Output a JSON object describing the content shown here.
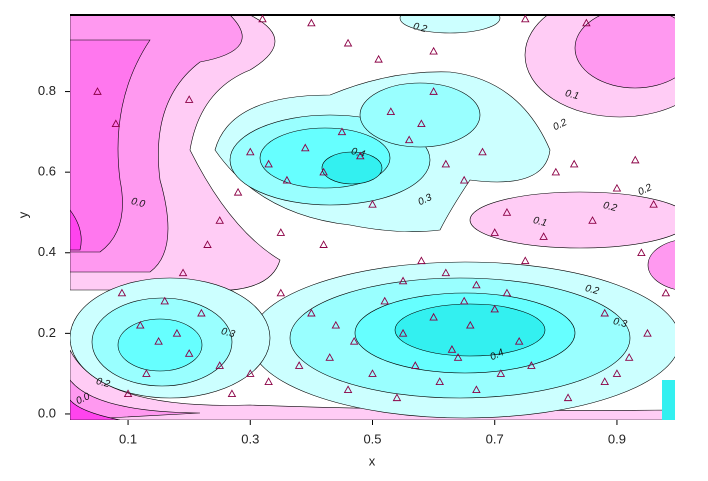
{
  "chart_data": {
    "type": "contour-scatter",
    "xlabel": "x",
    "ylabel": "y",
    "xlim": [
      0.005,
      0.995
    ],
    "ylim": [
      -0.015,
      0.99
    ],
    "xticks": [
      0.1,
      0.3,
      0.5,
      0.7,
      0.9
    ],
    "yticks": [
      {
        "value": 0,
        "label": "0.0"
      },
      0.2,
      0.4,
      0.6,
      0.8
    ],
    "marker_color": "#8b0045",
    "contour_labels": [
      "0.4",
      "0.3",
      "0.2",
      "0.3",
      "0.4",
      "0.3",
      "0.2",
      "0.0",
      "0.0",
      "0.1",
      "0.2",
      "0.2",
      "0.1",
      "0.2",
      "0.2"
    ],
    "points": {
      "x": [
        0.05,
        0.08,
        0.12,
        0.15,
        0.18,
        0.2,
        0.22,
        0.25,
        0.13,
        0.16,
        0.1,
        0.09,
        0.19,
        0.23,
        0.28,
        0.3,
        0.33,
        0.36,
        0.39,
        0.42,
        0.45,
        0.48,
        0.5,
        0.53,
        0.56,
        0.58,
        0.6,
        0.62,
        0.65,
        0.68,
        0.7,
        0.72,
        0.75,
        0.78,
        0.8,
        0.83,
        0.86,
        0.9,
        0.93,
        0.96,
        0.98,
        0.35,
        0.4,
        0.44,
        0.47,
        0.52,
        0.55,
        0.6,
        0.63,
        0.66,
        0.7,
        0.74,
        0.3,
        0.27,
        0.33,
        0.38,
        0.43,
        0.46,
        0.5,
        0.54,
        0.57,
        0.61,
        0.64,
        0.67,
        0.71,
        0.76,
        0.82,
        0.88,
        0.92,
        0.95,
        0.35,
        0.25,
        0.42,
        0.58,
        0.62,
        0.67,
        0.72,
        0.88,
        0.94,
        0.51,
        0.46,
        0.32,
        0.4,
        0.6,
        0.75,
        0.85,
        0.2,
        0.55,
        0.65,
        0.9
      ],
      "y": [
        0.8,
        0.72,
        0.22,
        0.18,
        0.2,
        0.15,
        0.25,
        0.12,
        0.1,
        0.28,
        0.05,
        0.3,
        0.35,
        0.42,
        0.55,
        0.65,
        0.62,
        0.58,
        0.66,
        0.6,
        0.7,
        0.64,
        0.52,
        0.75,
        0.68,
        0.72,
        0.8,
        0.62,
        0.58,
        0.65,
        0.45,
        0.5,
        0.38,
        0.44,
        0.6,
        0.62,
        0.48,
        0.56,
        0.63,
        0.52,
        0.3,
        0.3,
        0.25,
        0.22,
        0.18,
        0.28,
        0.2,
        0.24,
        0.16,
        0.22,
        0.26,
        0.18,
        0.1,
        0.05,
        0.08,
        0.12,
        0.14,
        0.06,
        0.1,
        0.04,
        0.12,
        0.08,
        0.14,
        0.06,
        0.1,
        0.12,
        0.04,
        0.08,
        0.14,
        0.2,
        0.45,
        0.48,
        0.42,
        0.38,
        0.35,
        0.32,
        0.3,
        0.25,
        0.4,
        0.88,
        0.92,
        0.98,
        0.97,
        0.9,
        0.98,
        0.97,
        0.78,
        0.33,
        0.28,
        0.1
      ]
    }
  }
}
